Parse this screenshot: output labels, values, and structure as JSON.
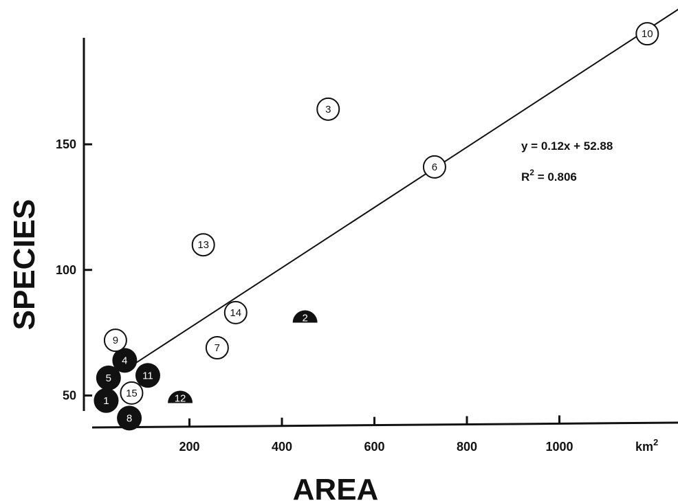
{
  "chart_data": {
    "type": "scatter",
    "xlabel": "AREA",
    "ylabel": "SPECIES",
    "x_unit": "km2",
    "x_ticks": [
      200,
      400,
      600,
      800,
      1000
    ],
    "y_ticks": [
      50,
      100,
      150
    ],
    "xlim": [
      0,
      1270
    ],
    "ylim": [
      37,
      193
    ],
    "regression": {
      "slope": 0.12,
      "intercept": 52.88,
      "x_range": [
        60,
        1270
      ]
    },
    "equation_text": "y = 0.12x + 52.88",
    "r2_label": "R",
    "r2_sup": "2",
    "r2_value": " = 0.806",
    "unit_label": "km",
    "unit_sup": "2",
    "points": [
      {
        "id": "1",
        "x": 20,
        "y": 48,
        "style": "filled"
      },
      {
        "id": "2",
        "x": 450,
        "y": 79,
        "style": "half"
      },
      {
        "id": "3",
        "x": 500,
        "y": 164,
        "style": "open"
      },
      {
        "id": "4",
        "x": 60,
        "y": 64,
        "style": "filled"
      },
      {
        "id": "5",
        "x": 25,
        "y": 57,
        "style": "filled"
      },
      {
        "id": "6",
        "x": 730,
        "y": 141,
        "style": "open"
      },
      {
        "id": "7",
        "x": 260,
        "y": 69,
        "style": "open"
      },
      {
        "id": "8",
        "x": 70,
        "y": 41,
        "style": "filled"
      },
      {
        "id": "9",
        "x": 40,
        "y": 72,
        "style": "open"
      },
      {
        "id": "10",
        "x": 1190,
        "y": 194,
        "style": "open"
      },
      {
        "id": "11",
        "x": 110,
        "y": 58,
        "style": "filled"
      },
      {
        "id": "12",
        "x": 180,
        "y": 47,
        "style": "half"
      },
      {
        "id": "13",
        "x": 230,
        "y": 110,
        "style": "open"
      },
      {
        "id": "14",
        "x": 300,
        "y": 83,
        "style": "open"
      },
      {
        "id": "15",
        "x": 75,
        "y": 51,
        "style": "open"
      }
    ]
  }
}
